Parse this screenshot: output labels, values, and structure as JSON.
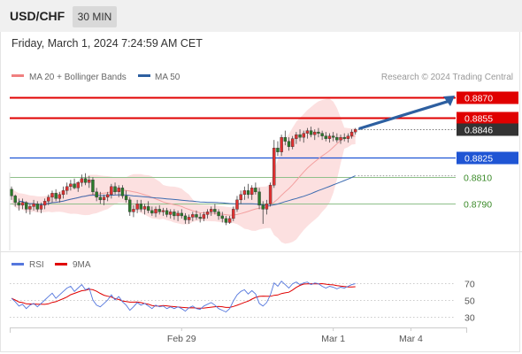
{
  "header": {
    "symbol": "USD/CHF",
    "timeframe": "30 MIN",
    "timestamp": "Friday, March 1, 2024 7:24:59 AM CET"
  },
  "legend": {
    "ma20": {
      "label": "MA 20 + Bollinger Bands",
      "color": "#f08080"
    },
    "ma50": {
      "label": "MA 50",
      "color": "#2d5fa0"
    },
    "credit": "Research © 2024 Trading Central"
  },
  "colors": {
    "resistance": "#e00000",
    "support_green": "#3a8a28",
    "current_price_bg": "#333333",
    "pivot_blue": "#1f55d4",
    "bull_candle": "#e03030",
    "bear_candle": "#2a7a2a",
    "bollinger_fill": "#fbdada",
    "rsi_line": "#5577dd",
    "rsi_ma_line": "#e00000"
  },
  "chart_data": {
    "type": "candlestick",
    "price_levels": [
      {
        "value": 0.887,
        "label": "0.8870",
        "kind": "resistance"
      },
      {
        "value": 0.8855,
        "label": "0.8855",
        "kind": "resistance"
      },
      {
        "value": 0.8846,
        "label": "0.8846",
        "kind": "last-price"
      },
      {
        "value": 0.8825,
        "label": "0.8825",
        "kind": "pivot"
      },
      {
        "value": 0.881,
        "label": "0.8810",
        "kind": "support"
      },
      {
        "value": 0.879,
        "label": "0.8790",
        "kind": "support"
      }
    ],
    "y_range": [
      0.8755,
      0.888
    ],
    "ohlc": [
      [
        0.8801,
        0.8803,
        0.8793,
        0.8796
      ],
      [
        0.8796,
        0.8797,
        0.8788,
        0.8791
      ],
      [
        0.8791,
        0.8794,
        0.8785,
        0.8789
      ],
      [
        0.8789,
        0.8794,
        0.8786,
        0.8791
      ],
      [
        0.8791,
        0.8792,
        0.8783,
        0.8786
      ],
      [
        0.8786,
        0.879,
        0.8782,
        0.8788
      ],
      [
        0.8788,
        0.8793,
        0.8785,
        0.879
      ],
      [
        0.879,
        0.8792,
        0.8784,
        0.8786
      ],
      [
        0.8786,
        0.8791,
        0.8783,
        0.8789
      ],
      [
        0.8789,
        0.8794,
        0.8786,
        0.8792
      ],
      [
        0.8792,
        0.8797,
        0.8789,
        0.8795
      ],
      [
        0.8795,
        0.88,
        0.8791,
        0.8798
      ],
      [
        0.8798,
        0.8801,
        0.8792,
        0.8794
      ],
      [
        0.8794,
        0.8799,
        0.8791,
        0.8797
      ],
      [
        0.8797,
        0.8803,
        0.8794,
        0.88
      ],
      [
        0.88,
        0.8806,
        0.8797,
        0.8803
      ],
      [
        0.8803,
        0.8808,
        0.88,
        0.8805
      ],
      [
        0.8805,
        0.8809,
        0.8801,
        0.8802
      ],
      [
        0.8802,
        0.8807,
        0.8799,
        0.8806
      ],
      [
        0.8806,
        0.8812,
        0.8803,
        0.8809
      ],
      [
        0.8809,
        0.8813,
        0.8804,
        0.8806
      ],
      [
        0.8806,
        0.8811,
        0.8802,
        0.8808
      ],
      [
        0.8808,
        0.881,
        0.8797,
        0.8799
      ],
      [
        0.8799,
        0.8802,
        0.8792,
        0.8795
      ],
      [
        0.8795,
        0.8799,
        0.879,
        0.8793
      ],
      [
        0.8793,
        0.8797,
        0.8789,
        0.8795
      ],
      [
        0.8795,
        0.8799,
        0.8792,
        0.8797
      ],
      [
        0.8797,
        0.8805,
        0.8794,
        0.8803
      ],
      [
        0.8803,
        0.8806,
        0.8797,
        0.8799
      ],
      [
        0.8799,
        0.8804,
        0.8795,
        0.8802
      ],
      [
        0.8802,
        0.8804,
        0.8794,
        0.8796
      ],
      [
        0.8796,
        0.88,
        0.8791,
        0.8793
      ],
      [
        0.8793,
        0.8795,
        0.8781,
        0.8784
      ],
      [
        0.8784,
        0.8789,
        0.878,
        0.8786
      ],
      [
        0.8786,
        0.8793,
        0.8783,
        0.879
      ],
      [
        0.879,
        0.8793,
        0.8784,
        0.8786
      ],
      [
        0.8786,
        0.879,
        0.8782,
        0.8788
      ],
      [
        0.8788,
        0.8792,
        0.8783,
        0.8785
      ],
      [
        0.8785,
        0.8788,
        0.8781,
        0.8783
      ],
      [
        0.8783,
        0.8788,
        0.878,
        0.8786
      ],
      [
        0.8786,
        0.8789,
        0.8782,
        0.8784
      ],
      [
        0.8784,
        0.8787,
        0.8781,
        0.8785
      ],
      [
        0.8785,
        0.8787,
        0.878,
        0.8782
      ],
      [
        0.8782,
        0.8786,
        0.8779,
        0.8784
      ],
      [
        0.8784,
        0.8786,
        0.8778,
        0.8781
      ],
      [
        0.8781,
        0.8785,
        0.8777,
        0.8783
      ],
      [
        0.8783,
        0.8786,
        0.8779,
        0.8781
      ],
      [
        0.8781,
        0.8783,
        0.8775,
        0.8778
      ],
      [
        0.8778,
        0.8782,
        0.8775,
        0.878
      ],
      [
        0.878,
        0.8784,
        0.8777,
        0.8782
      ],
      [
        0.8782,
        0.8785,
        0.8778,
        0.878
      ],
      [
        0.878,
        0.8783,
        0.8776,
        0.8779
      ],
      [
        0.8779,
        0.8784,
        0.8777,
        0.8782
      ],
      [
        0.8782,
        0.8786,
        0.8779,
        0.8784
      ],
      [
        0.8784,
        0.8788,
        0.8781,
        0.8786
      ],
      [
        0.8786,
        0.879,
        0.8782,
        0.8784
      ],
      [
        0.8784,
        0.8786,
        0.8778,
        0.8781
      ],
      [
        0.8781,
        0.8784,
        0.8776,
        0.8779
      ],
      [
        0.8779,
        0.8781,
        0.8774,
        0.8776
      ],
      [
        0.8776,
        0.8781,
        0.8775,
        0.8779
      ],
      [
        0.8779,
        0.8788,
        0.8777,
        0.8786
      ],
      [
        0.8786,
        0.8796,
        0.8784,
        0.8793
      ],
      [
        0.8793,
        0.88,
        0.879,
        0.8797
      ],
      [
        0.8797,
        0.8803,
        0.8793,
        0.88
      ],
      [
        0.88,
        0.8805,
        0.8794,
        0.8797
      ],
      [
        0.8797,
        0.8804,
        0.8793,
        0.8802
      ],
      [
        0.8802,
        0.8806,
        0.8797,
        0.8799
      ],
      [
        0.8799,
        0.8802,
        0.8786,
        0.8789
      ],
      [
        0.8789,
        0.8792,
        0.8775,
        0.8786
      ],
      [
        0.8786,
        0.8793,
        0.8782,
        0.879
      ],
      [
        0.879,
        0.8806,
        0.8788,
        0.8804
      ],
      [
        0.8804,
        0.8838,
        0.8802,
        0.8832
      ],
      [
        0.8832,
        0.8837,
        0.8826,
        0.8829
      ],
      [
        0.8829,
        0.8842,
        0.8826,
        0.884
      ],
      [
        0.884,
        0.8845,
        0.8834,
        0.8837
      ],
      [
        0.8837,
        0.884,
        0.883,
        0.8833
      ],
      [
        0.8833,
        0.8841,
        0.8831,
        0.8839
      ],
      [
        0.8839,
        0.8844,
        0.8835,
        0.8842
      ],
      [
        0.8842,
        0.8846,
        0.8837,
        0.884
      ],
      [
        0.884,
        0.8845,
        0.8836,
        0.8843
      ],
      [
        0.8843,
        0.8847,
        0.8839,
        0.8845
      ],
      [
        0.8845,
        0.8848,
        0.884,
        0.8842
      ],
      [
        0.8842,
        0.8846,
        0.8838,
        0.8844
      ],
      [
        0.8844,
        0.8847,
        0.884,
        0.8843
      ],
      [
        0.8843,
        0.8845,
        0.8838,
        0.8841
      ],
      [
        0.8841,
        0.8844,
        0.8837,
        0.8839
      ],
      [
        0.8839,
        0.8843,
        0.8836,
        0.8841
      ],
      [
        0.8841,
        0.8844,
        0.8837,
        0.884
      ],
      [
        0.884,
        0.8843,
        0.8836,
        0.8838
      ],
      [
        0.8838,
        0.8842,
        0.8835,
        0.884
      ],
      [
        0.884,
        0.8843,
        0.8837,
        0.8839
      ],
      [
        0.8839,
        0.8843,
        0.8836,
        0.8841
      ],
      [
        0.8841,
        0.8846,
        0.8839,
        0.8844
      ],
      [
        0.8844,
        0.8847,
        0.8842,
        0.8846
      ]
    ],
    "rsi": {
      "legend": "RSI",
      "ma_legend": "9MA",
      "levels": [
        70,
        50,
        30
      ],
      "range": [
        20,
        80
      ],
      "values": [
        52,
        48,
        43,
        45,
        40,
        44,
        46,
        42,
        46,
        50,
        54,
        58,
        52,
        56,
        60,
        64,
        66,
        60,
        64,
        68,
        62,
        64,
        50,
        44,
        42,
        46,
        50,
        56,
        50,
        54,
        48,
        44,
        38,
        42,
        47,
        44,
        46,
        43,
        40,
        44,
        42,
        43,
        40,
        42,
        40,
        42,
        40,
        37,
        41,
        43,
        40,
        39,
        43,
        45,
        47,
        44,
        40,
        38,
        36,
        40,
        49,
        56,
        60,
        62,
        57,
        61,
        57,
        46,
        43,
        47,
        56,
        70,
        66,
        72,
        68,
        64,
        69,
        71,
        68,
        70,
        71,
        68,
        70,
        69,
        66,
        64,
        66,
        65,
        63,
        65,
        64,
        66,
        68,
        69
      ]
    },
    "x_ticks": [
      {
        "label": "Feb 29",
        "index": 46
      },
      {
        "label": "Mar 1",
        "index": 87
      },
      {
        "label": "Mar 4",
        "index": 108
      }
    ]
  }
}
